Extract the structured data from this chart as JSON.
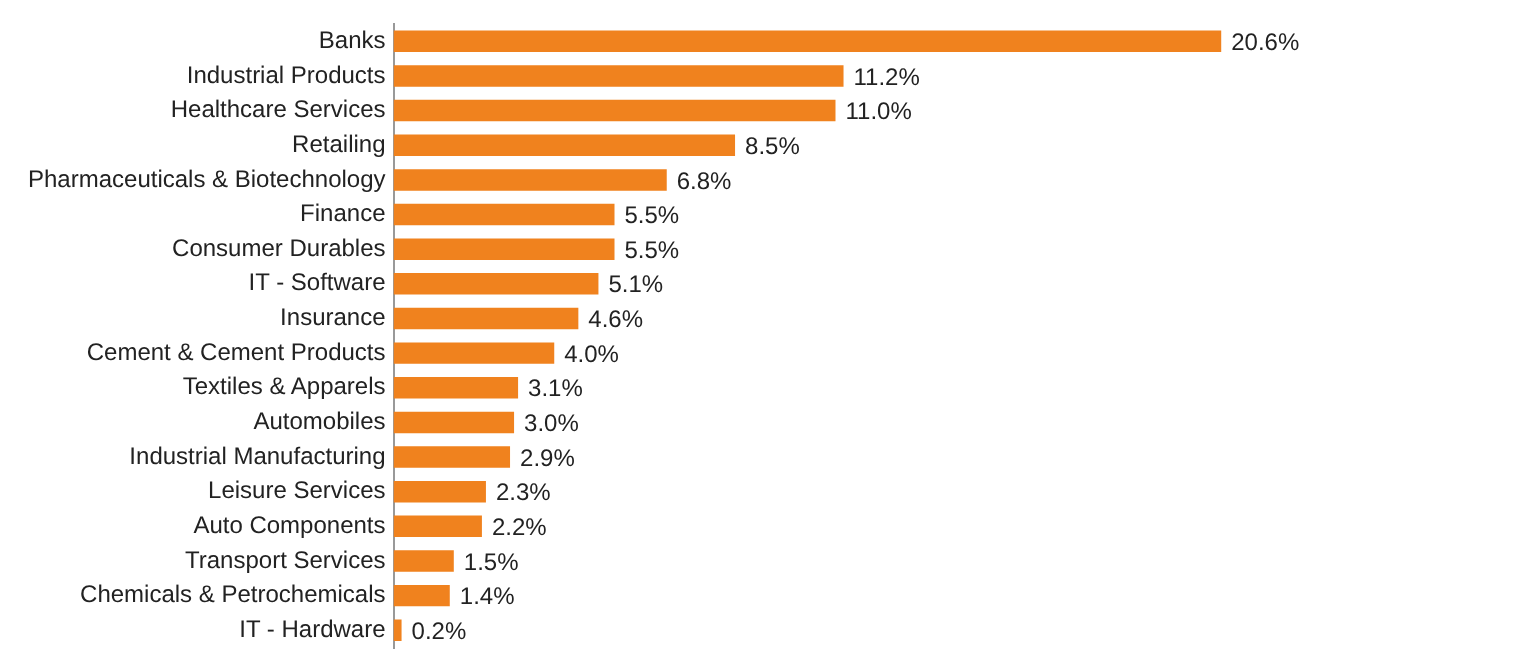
{
  "chart_data": {
    "type": "bar",
    "orientation": "horizontal",
    "categories": [
      "Banks",
      "Industrial Products",
      "Healthcare Services",
      "Retailing",
      "Pharmaceuticals & Biotechnology",
      "Finance",
      "Consumer Durables",
      "IT - Software",
      "Insurance",
      "Cement & Cement Products",
      "Textiles & Apparels",
      "Automobiles",
      "Industrial Manufacturing",
      "Leisure Services",
      "Auto Components",
      "Transport Services",
      "Chemicals & Petrochemicals",
      "IT - Hardware"
    ],
    "values": [
      20.6,
      11.2,
      11.0,
      8.5,
      6.8,
      5.5,
      5.5,
      5.1,
      4.6,
      4.0,
      3.1,
      3.0,
      2.9,
      2.3,
      2.2,
      1.5,
      1.4,
      0.2
    ],
    "value_labels": [
      "20.6%",
      "11.2%",
      "11.0%",
      "8.5%",
      "6.8%",
      "5.5%",
      "5.5%",
      "5.1%",
      "4.6%",
      "4.0%",
      "3.1%",
      "3.0%",
      "2.9%",
      "2.3%",
      "2.2%",
      "1.5%",
      "1.4%",
      "0.2%"
    ],
    "color": "#f0821e",
    "grid": false,
    "legend": false
  }
}
